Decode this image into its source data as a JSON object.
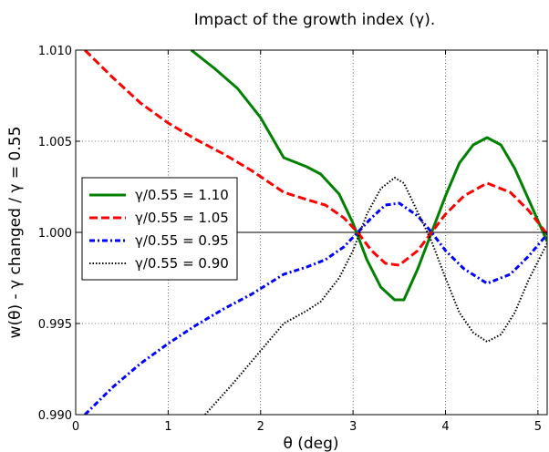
{
  "chart_data": {
    "type": "line",
    "title": "Impact of the growth index (γ).",
    "xlabel": "θ (deg)",
    "ylabel": "w(θ) - γ changed / γ = 0.55",
    "xlim": [
      0,
      5.1
    ],
    "ylim": [
      0.99,
      1.01
    ],
    "xticks": [
      0,
      1,
      2,
      3,
      4,
      5
    ],
    "xtick_labels": [
      "0",
      "1",
      "2",
      "3",
      "4",
      "5"
    ],
    "yticks": [
      0.99,
      0.995,
      1.0,
      1.005,
      1.01
    ],
    "ytick_labels": [
      "0.990",
      "0.995",
      "1.000",
      "1.005",
      "1.010"
    ],
    "grid": true,
    "reference_line": 1.0,
    "legend_position": "center-left",
    "series": [
      {
        "name": "γ/0.55 = 1.10",
        "color": "#008000",
        "dash": "solid",
        "x": [
          1.25,
          1.5,
          1.75,
          2.0,
          2.25,
          2.5,
          2.65,
          2.85,
          3.0,
          3.15,
          3.3,
          3.45,
          3.55,
          3.7,
          3.85,
          4.0,
          4.15,
          4.3,
          4.45,
          4.6,
          4.75,
          4.9,
          5.1
        ],
        "y": [
          1.01,
          1.009,
          1.0079,
          1.0063,
          1.0041,
          1.0036,
          1.0032,
          1.0021,
          1.0005,
          0.9985,
          0.997,
          0.9963,
          0.9963,
          0.998,
          1.0,
          1.002,
          1.0038,
          1.0048,
          1.0052,
          1.0048,
          1.0035,
          1.0018,
          0.9995
        ]
      },
      {
        "name": "γ/0.55 = 1.05",
        "color": "#ff0000",
        "dash": "dashed",
        "x": [
          0.1,
          0.4,
          0.7,
          1.0,
          1.3,
          1.6,
          1.9,
          2.25,
          2.5,
          2.7,
          2.9,
          3.05,
          3.2,
          3.35,
          3.5,
          3.7,
          3.85,
          4.0,
          4.2,
          4.45,
          4.7,
          4.9,
          5.1
        ],
        "y": [
          1.01,
          1.0085,
          1.0071,
          1.006,
          1.0051,
          1.0043,
          1.0034,
          1.0022,
          1.0018,
          1.0015,
          1.0008,
          1.0,
          0.999,
          0.9983,
          0.9982,
          0.999,
          1.0,
          1.001,
          1.002,
          1.0027,
          1.0022,
          1.0012,
          0.9999
        ]
      },
      {
        "name": "γ/0.55 = 0.95",
        "color": "#0000ff",
        "dash": "dashdot",
        "x": [
          0.1,
          0.4,
          0.7,
          1.0,
          1.3,
          1.6,
          1.9,
          2.25,
          2.5,
          2.7,
          2.9,
          3.05,
          3.2,
          3.35,
          3.5,
          3.7,
          3.85,
          4.0,
          4.2,
          4.45,
          4.7,
          4.9,
          5.1
        ],
        "y": [
          0.99,
          0.9915,
          0.9928,
          0.9939,
          0.9949,
          0.9958,
          0.9966,
          0.9977,
          0.9981,
          0.9985,
          0.9992,
          1.0,
          1.0008,
          1.0015,
          1.0016,
          1.0009,
          1.0,
          0.999,
          0.998,
          0.9972,
          0.9977,
          0.9987,
          0.9999
        ]
      },
      {
        "name": "γ/0.55 = 0.90",
        "color": "#000000",
        "dash": "dotted",
        "x": [
          1.4,
          1.7,
          2.0,
          2.25,
          2.5,
          2.65,
          2.85,
          3.0,
          3.15,
          3.3,
          3.45,
          3.55,
          3.7,
          3.85,
          4.0,
          4.15,
          4.3,
          4.45,
          4.6,
          4.75,
          4.9,
          5.1
        ],
        "y": [
          0.99,
          0.9917,
          0.9935,
          0.995,
          0.9957,
          0.9962,
          0.9975,
          0.999,
          1.001,
          1.0024,
          1.003,
          1.0027,
          1.0011,
          0.9995,
          0.9975,
          0.9956,
          0.9945,
          0.994,
          0.9944,
          0.9956,
          0.9974,
          0.9994
        ]
      }
    ]
  }
}
